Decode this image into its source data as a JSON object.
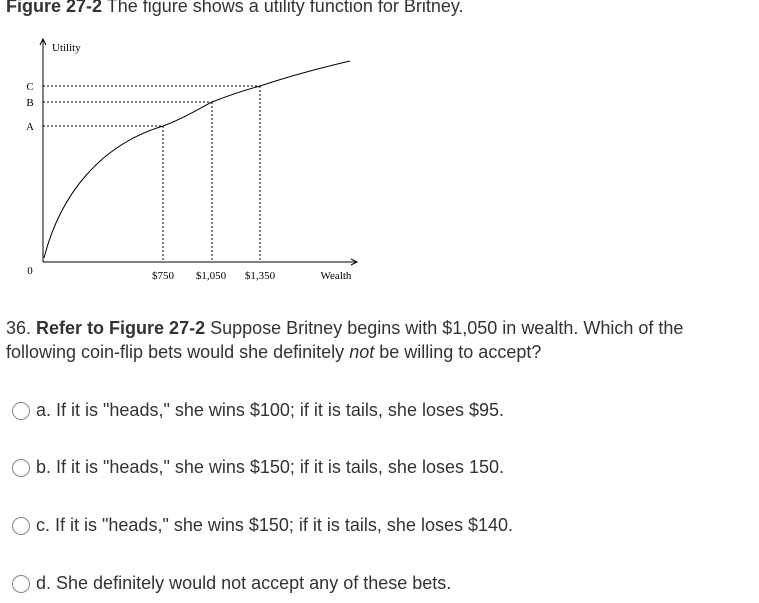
{
  "header": {
    "figure_label": "Figure 27-2",
    "title": "The figure shows a utility function for Britney."
  },
  "figure": {
    "y_axis_label": "Utility",
    "x_axis_label": "Wealth",
    "y_labels": [
      "C",
      "B",
      "A",
      "0"
    ],
    "x_labels": [
      "$750",
      "$1,050",
      "$1,350"
    ]
  },
  "question": {
    "number": "36.",
    "reference": "Refer to Figure 27-2",
    "text_before": "Suppose Britney begins with $1,050 in wealth. Which of the following coin-flip bets would she definitely",
    "emphasis": "not",
    "text_after": "be willing to accept?"
  },
  "options": [
    "a. If it is \"heads,\" she wins $100; if it is tails, she loses $95.",
    "b. If it is \"heads,\" she wins $150; if it is tails, she loses 150.",
    "c. If it is \"heads,\" she wins $150; if it is tails, she loses $140.",
    "d. She definitely would not accept any of these bets."
  ]
}
